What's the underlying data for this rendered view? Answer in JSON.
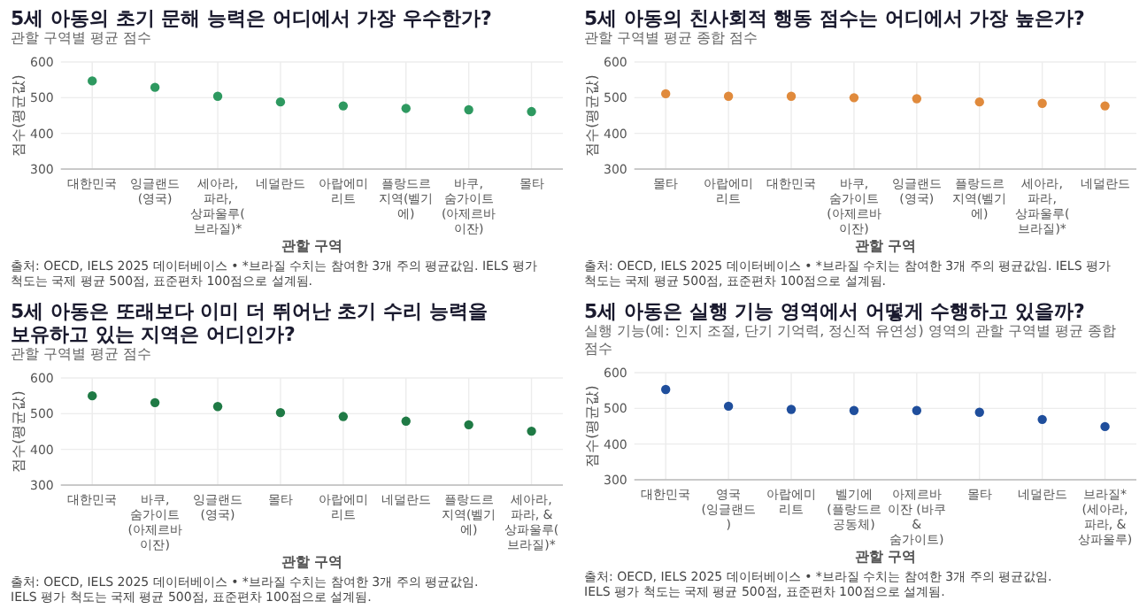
{
  "chart_data": [
    {
      "type": "scatter",
      "title": "5세 아동의 초기 문해 능력은 어디에서 가장 우수한가?",
      "subtitle": "관할 구역별 평균 점수",
      "xlabel": "관할 구역",
      "ylabel": "점수(평균값)",
      "categories": [
        "대한민국",
        "잉글랜드 (영국)",
        "세아라, 파라, 상파울루(브라질)*",
        "네덜란드",
        "아랍에미리트",
        "플랑드르 지역(벨기에)",
        "바쿠, 숨가이트 (아제르바이잔)",
        "몰타"
      ],
      "series": [
        {
          "color": "#2e9960",
          "values": [
            547,
            529,
            504,
            488,
            477,
            470,
            466,
            461
          ]
        }
      ],
      "ylim": [
        300,
        600
      ],
      "yticks": [
        300,
        400,
        500,
        600
      ],
      "grid": true,
      "marker": "circle",
      "annotations": [
        "출처: OECD, IELS 2025 데이터베이스 • *브라질 수치는 참여한 3개 주의 평균값임. IELS 평가 척도는 국제 평균 500점, 표준편차 100점으로 설계됨."
      ]
    },
    {
      "type": "scatter",
      "title": "5세 아동의 친사회적 행동 점수는 어디에서 가장 높은가?",
      "subtitle": "관할 구역별 평균 종합 점수",
      "xlabel": "관할 구역",
      "ylabel": "점수(평균값)",
      "categories": [
        "몰타",
        "아랍에미리트",
        "대한민국",
        "바쿠, 숨가이트 (아제르바이잔)",
        "잉글랜드 (영국)",
        "플랑드르 지역(벨기에)",
        "세아라, 파라, 상파울루(브라질)*",
        "네덜란드"
      ],
      "series": [
        {
          "color": "#e08a3c",
          "values": [
            511,
            504,
            504,
            500,
            497,
            488,
            484,
            477
          ]
        }
      ],
      "ylim": [
        300,
        600
      ],
      "yticks": [
        300,
        400,
        500,
        600
      ],
      "grid": true,
      "marker": "circle",
      "annotations": [
        "출처: OECD, IELS 2025 데이터베이스 • *브라질 수치는 참여한 3개 주의 평균값임. IELS 평가 척도는 국제 평균 500점, 표준편차 100점으로 설계됨."
      ]
    },
    {
      "type": "scatter",
      "title": "5세 아동은 또래보다 이미 더 뛰어난 초기 수리 능력을 보유하고 있는 지역은 어디인가?",
      "subtitle": "관할 구역별 평균 점수",
      "xlabel": "관할 구역",
      "ylabel": "점수(평균값)",
      "categories": [
        "대한민국",
        "바쿠, 숨가이트 (아제르바이잔)",
        "잉글랜드 (영국)",
        "몰타",
        "아랍에미리트",
        "네덜란드",
        "플랑드르 지역(벨기에)",
        "세아라, 파라, & 상파울루(브라질)*"
      ],
      "series": [
        {
          "color": "#1f7a45",
          "values": [
            550,
            531,
            520,
            503,
            492,
            479,
            469,
            451
          ]
        }
      ],
      "ylim": [
        300,
        600
      ],
      "yticks": [
        300,
        400,
        500,
        600
      ],
      "grid": true,
      "marker": "circle",
      "annotations": [
        "출처: OECD, IELS 2025 데이터베이스 • *브라질 수치는 참여한 3개 주의 평균값임.",
        "IELS 평가 척도는 국제 평균 500점, 표준편차 100점으로 설계됨."
      ]
    },
    {
      "type": "scatter",
      "title": "5세 아동은 실행 기능 영역에서 어떻게 수행하고 있을까?",
      "subtitle": "실행 기능(예: 인지 조절, 단기 기억력, 정신적 유연성) 영역의 관할 구역별 평균 종합 점수",
      "xlabel": "관할 구역",
      "ylabel": "점수(평균값)",
      "categories": [
        "대한민국",
        "영국 (잉글랜드)",
        "아랍에미리트",
        "벨기에 (플랑드르 공동체)",
        "아제르바이잔 (바쿠 & 숨가이트)",
        "몰타",
        "네덜란드",
        "브라질* (세아라, 파라, & 상파울루)"
      ],
      "series": [
        {
          "color": "#1f4e9c",
          "values": [
            553,
            506,
            497,
            494,
            494,
            489,
            469,
            449
          ]
        }
      ],
      "ylim": [
        300,
        600
      ],
      "yticks": [
        300,
        400,
        500,
        600
      ],
      "grid": true,
      "marker": "circle",
      "annotations": [
        "출처: OECD, IELS 2025 데이터베이스 • *브라질 수치는 참여한 3개 주의 평균값임.",
        "IELS 평가 척도는 국제 평균 500점, 표준편차 100점으로 설계됨."
      ]
    }
  ]
}
